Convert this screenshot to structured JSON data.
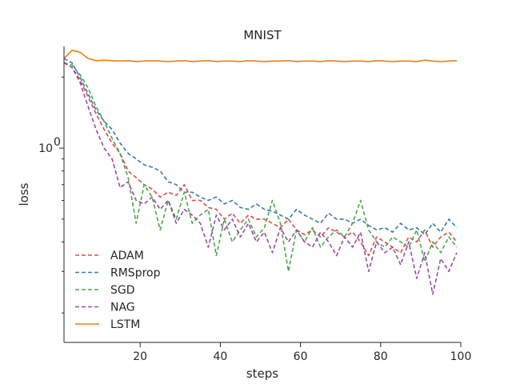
{
  "chart_data": {
    "type": "line",
    "title": "MNIST",
    "xlabel": "steps",
    "ylabel": "loss",
    "xlim": [
      1,
      100
    ],
    "ylim": [
      0.15,
      2.7
    ],
    "yscale": "log",
    "xticks": [
      20,
      40,
      60,
      80,
      100
    ],
    "yticks": [
      {
        "value": 1.0,
        "base": "10",
        "exponent": "0"
      }
    ],
    "grid": false,
    "legend_position": "lower-left",
    "series": [
      {
        "name": "ADAM",
        "color": "#e24a4a",
        "style": "dashed",
        "x": [
          1,
          3,
          5,
          7,
          9,
          11,
          13,
          15,
          17,
          19,
          21,
          23,
          25,
          27,
          29,
          31,
          33,
          35,
          37,
          39,
          41,
          43,
          45,
          47,
          49,
          51,
          53,
          55,
          57,
          59,
          61,
          63,
          65,
          67,
          69,
          71,
          73,
          75,
          77,
          79,
          81,
          83,
          85,
          87,
          89,
          91,
          93,
          95,
          97,
          99
        ],
        "y": [
          2.3,
          2.2,
          1.95,
          1.65,
          1.4,
          1.2,
          1.05,
          0.95,
          0.8,
          0.75,
          0.7,
          0.67,
          0.62,
          0.65,
          0.63,
          0.7,
          0.6,
          0.6,
          0.56,
          0.55,
          0.5,
          0.53,
          0.48,
          0.52,
          0.5,
          0.5,
          0.48,
          0.46,
          0.5,
          0.45,
          0.43,
          0.45,
          0.42,
          0.46,
          0.44,
          0.42,
          0.44,
          0.4,
          0.35,
          0.42,
          0.4,
          0.38,
          0.36,
          0.42,
          0.4,
          0.45,
          0.38,
          0.42,
          0.44,
          0.4
        ]
      },
      {
        "name": "RMSprop",
        "color": "#3a7ab0",
        "style": "dashed",
        "x": [
          1,
          3,
          5,
          7,
          9,
          11,
          13,
          15,
          17,
          19,
          21,
          23,
          25,
          27,
          29,
          31,
          33,
          35,
          37,
          39,
          41,
          43,
          45,
          47,
          49,
          51,
          53,
          55,
          57,
          59,
          61,
          63,
          65,
          67,
          69,
          71,
          73,
          75,
          77,
          79,
          81,
          83,
          85,
          87,
          89,
          91,
          93,
          95,
          97,
          99
        ],
        "y": [
          2.4,
          2.3,
          2.0,
          1.7,
          1.45,
          1.3,
          1.2,
          1.05,
          0.95,
          0.9,
          0.85,
          0.83,
          0.8,
          0.72,
          0.7,
          0.65,
          0.65,
          0.62,
          0.6,
          0.62,
          0.58,
          0.6,
          0.56,
          0.55,
          0.58,
          0.55,
          0.54,
          0.52,
          0.5,
          0.55,
          0.52,
          0.5,
          0.48,
          0.53,
          0.5,
          0.5,
          0.48,
          0.5,
          0.47,
          0.45,
          0.46,
          0.44,
          0.48,
          0.45,
          0.46,
          0.43,
          0.48,
          0.44,
          0.5,
          0.46
        ]
      },
      {
        "name": "SGD",
        "color": "#4aa84a",
        "style": "dashed",
        "x": [
          1,
          3,
          5,
          7,
          9,
          11,
          13,
          15,
          17,
          19,
          21,
          23,
          25,
          27,
          29,
          31,
          33,
          35,
          37,
          39,
          41,
          43,
          45,
          47,
          49,
          51,
          53,
          55,
          57,
          59,
          61,
          63,
          65,
          67,
          69,
          71,
          73,
          75,
          77,
          79,
          81,
          83,
          85,
          87,
          89,
          91,
          93,
          95,
          97,
          99
        ],
        "y": [
          2.3,
          2.25,
          2.05,
          1.8,
          1.5,
          1.3,
          1.1,
          0.95,
          0.75,
          0.48,
          0.7,
          0.62,
          0.45,
          0.6,
          0.5,
          0.65,
          0.48,
          0.52,
          0.55,
          0.35,
          0.5,
          0.4,
          0.45,
          0.5,
          0.42,
          0.46,
          0.6,
          0.48,
          0.3,
          0.45,
          0.4,
          0.46,
          0.38,
          0.42,
          0.45,
          0.42,
          0.48,
          0.6,
          0.45,
          0.4,
          0.38,
          0.42,
          0.4,
          0.38,
          0.45,
          0.33,
          0.4,
          0.36,
          0.42,
          0.38
        ]
      },
      {
        "name": "NAG",
        "color": "#9d4aa8",
        "style": "dashed",
        "x": [
          1,
          3,
          5,
          7,
          9,
          11,
          13,
          15,
          17,
          19,
          21,
          23,
          25,
          27,
          29,
          31,
          33,
          35,
          37,
          39,
          41,
          43,
          45,
          47,
          49,
          51,
          53,
          55,
          57,
          59,
          61,
          63,
          65,
          67,
          69,
          71,
          73,
          75,
          77,
          79,
          81,
          83,
          85,
          87,
          89,
          91,
          93,
          95,
          97,
          99
        ],
        "y": [
          2.3,
          2.2,
          1.9,
          1.5,
          1.2,
          1.0,
          0.9,
          0.68,
          0.72,
          0.6,
          0.58,
          0.62,
          0.55,
          0.6,
          0.48,
          0.55,
          0.52,
          0.48,
          0.38,
          0.52,
          0.45,
          0.5,
          0.42,
          0.48,
          0.4,
          0.44,
          0.36,
          0.46,
          0.4,
          0.45,
          0.4,
          0.38,
          0.44,
          0.4,
          0.35,
          0.42,
          0.38,
          0.44,
          0.3,
          0.4,
          0.36,
          0.38,
          0.32,
          0.4,
          0.28,
          0.36,
          0.24,
          0.34,
          0.3,
          0.36
        ]
      },
      {
        "name": "LSTM",
        "color": "#f07f12",
        "style": "solid",
        "x": [
          1,
          3,
          5,
          7,
          9,
          11,
          13,
          15,
          17,
          19,
          21,
          23,
          25,
          27,
          29,
          31,
          33,
          35,
          37,
          39,
          41,
          43,
          45,
          47,
          49,
          51,
          53,
          55,
          57,
          59,
          61,
          63,
          65,
          67,
          69,
          71,
          73,
          75,
          77,
          79,
          81,
          83,
          85,
          87,
          89,
          91,
          93,
          95,
          97,
          99
        ],
        "y": [
          2.4,
          2.6,
          2.55,
          2.4,
          2.35,
          2.36,
          2.35,
          2.34,
          2.35,
          2.33,
          2.34,
          2.35,
          2.34,
          2.33,
          2.34,
          2.35,
          2.33,
          2.34,
          2.35,
          2.33,
          2.34,
          2.34,
          2.33,
          2.35,
          2.34,
          2.33,
          2.34,
          2.34,
          2.35,
          2.33,
          2.34,
          2.34,
          2.33,
          2.35,
          2.34,
          2.33,
          2.34,
          2.34,
          2.33,
          2.35,
          2.34,
          2.33,
          2.34,
          2.34,
          2.33,
          2.36,
          2.34,
          2.33,
          2.34,
          2.35
        ]
      }
    ]
  }
}
